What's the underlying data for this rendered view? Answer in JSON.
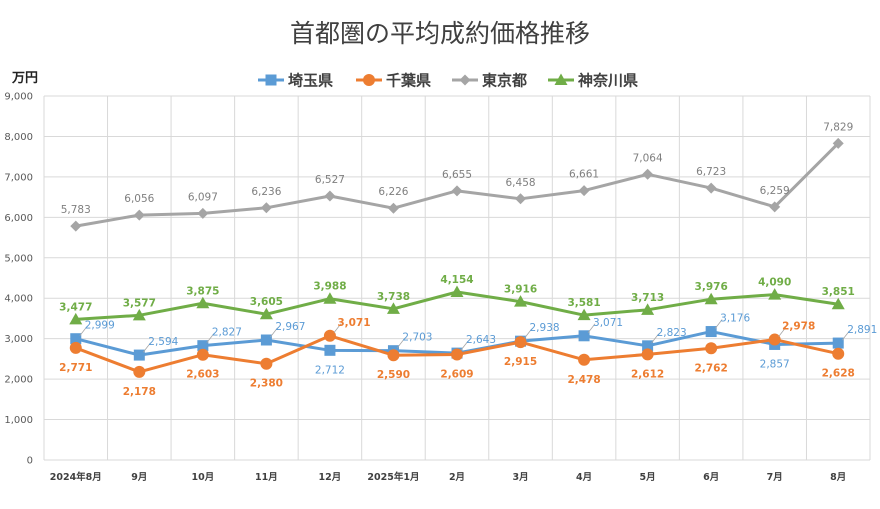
{
  "chart_data": {
    "type": "line",
    "title": "首都圏の平均成約価格推移",
    "ylabel": "万円",
    "xlabel": "",
    "ylim": [
      0,
      9000
    ],
    "yticks": [
      "0",
      "1,000",
      "2,000",
      "3,000",
      "4,000",
      "5,000",
      "6,000",
      "7,000",
      "8,000",
      "9,000"
    ],
    "categories": [
      "2024年8月",
      "9月",
      "10月",
      "11月",
      "12月",
      "2025年1月",
      "2月",
      "3月",
      "4月",
      "5月",
      "6月",
      "7月",
      "8月"
    ],
    "grid": true,
    "legend_position": "top",
    "series": [
      {
        "name": "埼玉県",
        "color": "#5b9bd5",
        "marker": "square",
        "values": [
          2999,
          2594,
          2827,
          2967,
          2712,
          2703,
          2643,
          2938,
          3071,
          2823,
          3176,
          2857,
          2891
        ],
        "labels": [
          "2,999",
          "2,594",
          "2,827",
          "2,967",
          "2,712",
          "2,703",
          "2,643",
          "2,938",
          "3,071",
          "2,823",
          "3,176",
          "2,857",
          "2,891"
        ]
      },
      {
        "name": "千葉県",
        "color": "#ed7d31",
        "marker": "circle",
        "values": [
          2771,
          2178,
          2603,
          2380,
          3071,
          2590,
          2609,
          2915,
          2478,
          2612,
          2762,
          2978,
          2628
        ],
        "labels": [
          "2,771",
          "2,178",
          "2,603",
          "2,380",
          "3,071",
          "2,590",
          "2,609",
          "2,915",
          "2,478",
          "2,612",
          "2,762",
          "2,978",
          "2,628"
        ]
      },
      {
        "name": "東京都",
        "color": "#a5a5a5",
        "marker": "diamond",
        "values": [
          5783,
          6056,
          6097,
          6236,
          6527,
          6226,
          6655,
          6458,
          6661,
          7064,
          6723,
          6259,
          7829
        ],
        "labels": [
          "5,783",
          "6,056",
          "6,097",
          "6,236",
          "6,527",
          "6,226",
          "6,655",
          "6,458",
          "6,661",
          "7,064",
          "6,723",
          "6,259",
          "7,829"
        ]
      },
      {
        "name": "神奈川県",
        "color": "#70ad47",
        "marker": "triangle",
        "values": [
          3477,
          3577,
          3875,
          3605,
          3988,
          3738,
          4154,
          3916,
          3581,
          3713,
          3976,
          4090,
          3851
        ],
        "labels": [
          "3,477",
          "3,577",
          "3,875",
          "3,605",
          "3,988",
          "3,738",
          "4,154",
          "3,916",
          "3,581",
          "3,713",
          "3,976",
          "4,090",
          "3,851"
        ]
      }
    ]
  }
}
